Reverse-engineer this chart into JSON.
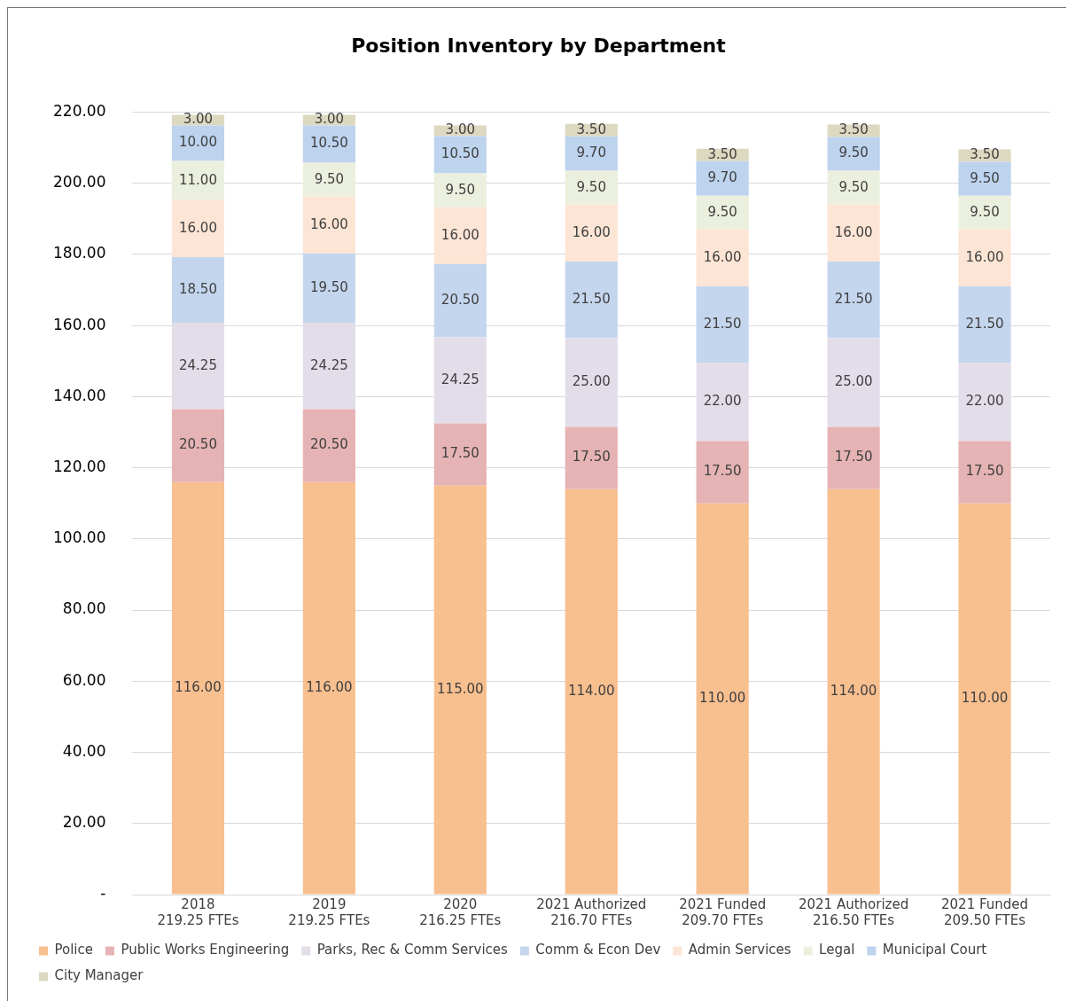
{
  "chart_data": {
    "type": "bar",
    "title": "Position Inventory by Department",
    "stacked": true,
    "grid": "y",
    "legend": "bottom",
    "data_labels": true,
    "categories": [
      "2018\n219.25 FTEs",
      "2019\n219.25 FTEs",
      "2020\n216.25 FTEs",
      "2021 Authorized\n216.70 FTEs",
      "2021 Funded\n209.70 FTEs",
      "2021 Authorized\n216.50 FTEs",
      "2021 Funded\n209.50 FTEs"
    ],
    "ylim": [
      0,
      220
    ],
    "yticks": [
      {
        "value": 0,
        "label": "-"
      },
      {
        "value": 20,
        "label": "20.00"
      },
      {
        "value": 40,
        "label": "40.00"
      },
      {
        "value": 60,
        "label": "60.00"
      },
      {
        "value": 80,
        "label": "80.00"
      },
      {
        "value": 100,
        "label": "100.00"
      },
      {
        "value": 120,
        "label": "120.00"
      },
      {
        "value": 140,
        "label": "140.00"
      },
      {
        "value": 160,
        "label": "160.00"
      },
      {
        "value": 180,
        "label": "180.00"
      },
      {
        "value": 200,
        "label": "200.00"
      },
      {
        "value": 220,
        "label": "220.00"
      }
    ],
    "series": [
      {
        "name": "Police",
        "color": "#f8bf8f",
        "values": [
          116,
          116,
          115,
          114,
          110,
          114,
          110
        ],
        "value_labels": [
          "116.00",
          "116.00",
          "115.00",
          "114.00",
          "110.00",
          "114.00",
          "110.00"
        ]
      },
      {
        "name": "Public Works Engineering",
        "color": "#e6b3b4",
        "values": [
          20.5,
          20.5,
          17.5,
          17.5,
          17.5,
          17.5,
          17.5
        ],
        "value_labels": [
          "20.50",
          "20.50",
          "17.50",
          "17.50",
          "17.50",
          "17.50",
          "17.50"
        ]
      },
      {
        "name": "Parks, Rec & Comm Services",
        "color": "#e3dde9",
        "values": [
          24.25,
          24.25,
          24.25,
          25,
          22,
          25,
          22
        ],
        "value_labels": [
          "24.25",
          "24.25",
          "24.25",
          "25.00",
          "22.00",
          "25.00",
          "22.00"
        ]
      },
      {
        "name": "Comm & Econ Dev",
        "color": "#c4d6ee",
        "values": [
          18.5,
          19.5,
          20.5,
          21.5,
          21.5,
          21.5,
          21.5
        ],
        "value_labels": [
          "18.50",
          "19.50",
          "20.50",
          "21.50",
          "21.50",
          "21.50",
          "21.50"
        ]
      },
      {
        "name": "Admin Services",
        "color": "#fde5d5",
        "values": [
          16,
          16,
          16,
          16,
          16,
          16,
          16
        ],
        "value_labels": [
          "16.00",
          "16.00",
          "16.00",
          "16.00",
          "16.00",
          "16.00",
          "16.00"
        ]
      },
      {
        "name": "Legal",
        "color": "#ebf0de",
        "values": [
          11,
          9.5,
          9.5,
          9.5,
          9.5,
          9.5,
          9.5
        ],
        "value_labels": [
          "11.00",
          "9.50",
          "9.50",
          "9.50",
          "9.50",
          "9.50",
          "9.50"
        ]
      },
      {
        "name": "Municipal Court",
        "color": "#bdd3ee",
        "values": [
          10,
          10.5,
          10.5,
          9.7,
          9.7,
          9.5,
          9.5
        ],
        "value_labels": [
          "10.00",
          "10.50",
          "10.50",
          "9.70",
          "9.70",
          "9.50",
          "9.50"
        ]
      },
      {
        "name": "City Manager",
        "color": "#ddd8c0",
        "values": [
          3,
          3,
          3,
          3.5,
          3.5,
          3.5,
          3.5
        ],
        "value_labels": [
          "3.00",
          "3.00",
          "3.00",
          "3.50",
          "3.50",
          "3.50",
          "3.50"
        ]
      }
    ]
  }
}
